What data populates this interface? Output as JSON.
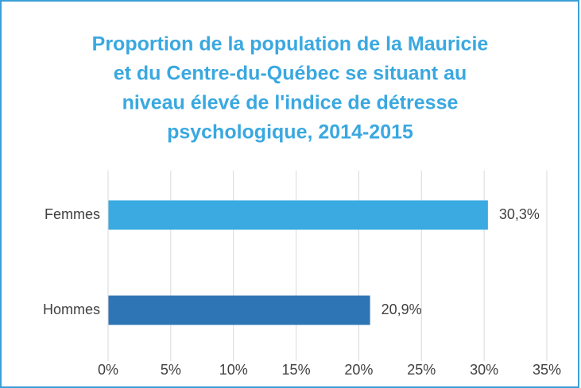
{
  "chart_data": {
    "type": "hbar",
    "title": [
      "Proportion de la population de la Mauricie",
      "et du Centre-du-Québec se situant au",
      "niveau élevé de l'indice de détresse",
      "psychologique, 2014-2015"
    ],
    "categories": [
      "Femmes",
      "Hommes"
    ],
    "values": [
      30.3,
      20.9
    ],
    "value_labels": [
      "30,3%",
      "20,9%"
    ],
    "colors": [
      "#3aaae1",
      "#2e75b6"
    ],
    "xlim": [
      0,
      35
    ],
    "xticks": [
      {
        "value": 0,
        "label": "0%"
      },
      {
        "value": 5,
        "label": "5%"
      },
      {
        "value": 10,
        "label": "10%"
      },
      {
        "value": 15,
        "label": "15%"
      },
      {
        "value": 20,
        "label": "20%"
      },
      {
        "value": 25,
        "label": "25%"
      },
      {
        "value": 30,
        "label": "30%"
      },
      {
        "value": 35,
        "label": "35%"
      }
    ],
    "grid": true
  }
}
